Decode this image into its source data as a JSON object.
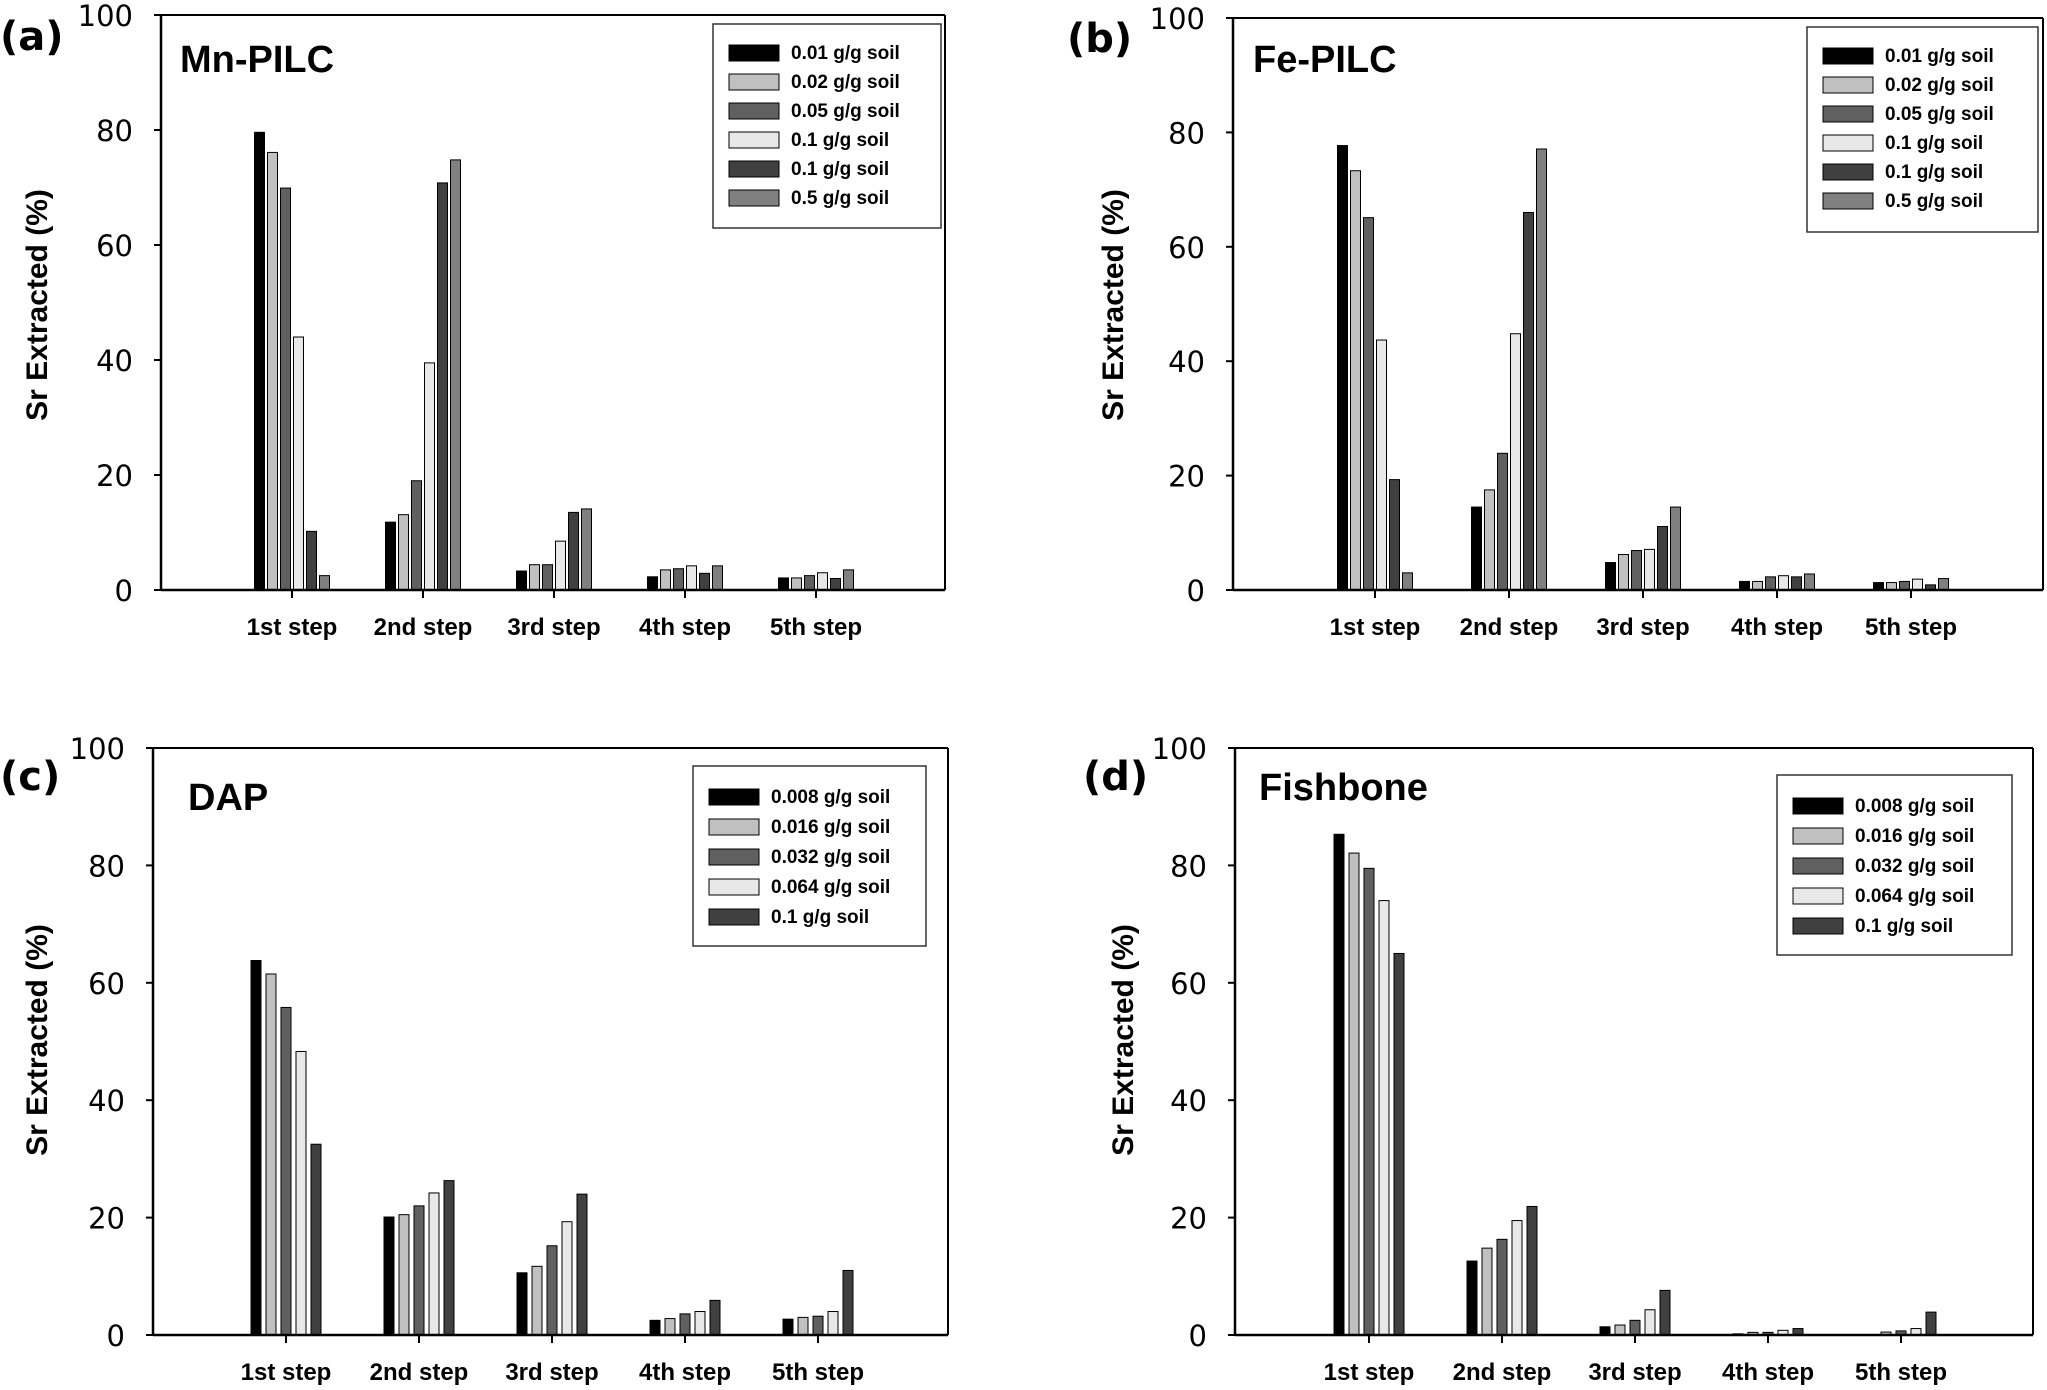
{
  "chart_data": [
    {
      "type": "bar",
      "panel_label": "(a)",
      "title": "Mn-PILC",
      "xlabel": "",
      "ylabel": "Sr Extracted (%)",
      "ylim": [
        0,
        100
      ],
      "yticks": [
        "0",
        "20",
        "40",
        "60",
        "80",
        "100"
      ],
      "categories": [
        "1st step",
        "2nd step",
        "3rd step",
        "4th step",
        "5th step"
      ],
      "legend_position": "top-right",
      "series": [
        {
          "name": "0.01 g/g soil",
          "color": "#000000",
          "values": [
            79.6,
            11.8,
            3.3,
            2.3,
            2.1
          ]
        },
        {
          "name": "0.02 g/g soil",
          "color": "#c0c0c0",
          "values": [
            76.1,
            13.1,
            4.4,
            3.5,
            2.1
          ]
        },
        {
          "name": "0.05 g/g soil",
          "color": "#606060",
          "values": [
            69.9,
            19.0,
            4.4,
            3.7,
            2.5
          ]
        },
        {
          "name": "0.1 g/g soil",
          "color": "#e8e8e8",
          "values": [
            44.0,
            39.5,
            8.5,
            4.2,
            3.0
          ]
        },
        {
          "name": "0.1 g/g soil",
          "color": "#404040",
          "values": [
            10.2,
            70.8,
            13.5,
            2.9,
            2.0
          ]
        },
        {
          "name": "0.5 g/g soil",
          "color": "#808080",
          "values": [
            2.5,
            74.8,
            14.1,
            4.2,
            3.5
          ]
        }
      ]
    },
    {
      "type": "bar",
      "panel_label": "(b)",
      "title": "Fe-PILC",
      "xlabel": "",
      "ylabel": "Sr Extracted (%)",
      "ylim": [
        0,
        100
      ],
      "yticks": [
        "0",
        "20",
        "40",
        "60",
        "80",
        "100"
      ],
      "categories": [
        "1st step",
        "2nd step",
        "3rd step",
        "4th step",
        "5th step"
      ],
      "legend_position": "top-right",
      "series": [
        {
          "name": "0.01 g/g soil",
          "color": "#000000",
          "values": [
            77.7,
            14.5,
            4.8,
            1.5,
            1.3
          ]
        },
        {
          "name": "0.02 g/g soil",
          "color": "#c0c0c0",
          "values": [
            73.3,
            17.5,
            6.2,
            1.5,
            1.3
          ]
        },
        {
          "name": "0.05 g/g soil",
          "color": "#606060",
          "values": [
            65.1,
            23.9,
            6.9,
            2.3,
            1.5
          ]
        },
        {
          "name": "0.1 g/g soil",
          "color": "#e8e8e8",
          "values": [
            43.7,
            44.8,
            7.1,
            2.5,
            1.9
          ]
        },
        {
          "name": "0.1 g/g soil",
          "color": "#404040",
          "values": [
            19.3,
            66.0,
            11.1,
            2.3,
            0.9
          ]
        },
        {
          "name": "0.5 g/g soil",
          "color": "#808080",
          "values": [
            3.0,
            77.1,
            14.5,
            2.8,
            2.0
          ]
        }
      ]
    },
    {
      "type": "bar",
      "panel_label": "(c)",
      "title": "DAP",
      "xlabel": "",
      "ylabel": "Sr Extracted (%)",
      "ylim": [
        0,
        100
      ],
      "yticks": [
        "0",
        "20",
        "40",
        "60",
        "80",
        "100"
      ],
      "categories": [
        "1st step",
        "2nd step",
        "3rd step",
        "4th step",
        "5th step"
      ],
      "legend_position": "top-right",
      "series": [
        {
          "name": "0.008 g/g soil",
          "color": "#000000",
          "values": [
            63.8,
            20.1,
            10.6,
            2.5,
            2.7
          ]
        },
        {
          "name": "0.016 g/g soil",
          "color": "#c0c0c0",
          "values": [
            61.5,
            20.5,
            11.7,
            2.8,
            3.0
          ]
        },
        {
          "name": "0.032 g/g soil",
          "color": "#606060",
          "values": [
            55.8,
            22.0,
            15.2,
            3.6,
            3.2
          ]
        },
        {
          "name": "0.064 g/g soil",
          "color": "#e8e8e8",
          "values": [
            48.3,
            24.2,
            19.3,
            4.0,
            4.0
          ]
        },
        {
          "name": "0.1 g/g soil",
          "color": "#404040",
          "values": [
            32.5,
            26.3,
            24.0,
            5.9,
            11.0
          ]
        }
      ]
    },
    {
      "type": "bar",
      "panel_label": "(d)",
      "title": "Fishbone",
      "xlabel": "",
      "ylabel": "Sr Extracted (%)",
      "ylim": [
        0,
        100
      ],
      "yticks": [
        "0",
        "20",
        "40",
        "60",
        "80",
        "100"
      ],
      "categories": [
        "1st step",
        "2nd step",
        "3rd step",
        "4th step",
        "5th step"
      ],
      "legend_position": "top-right",
      "series": [
        {
          "name": "0.008 g/g soil",
          "color": "#000000",
          "values": [
            85.3,
            12.6,
            1.4,
            0.2,
            0.0
          ]
        },
        {
          "name": "0.016 g/g soil",
          "color": "#c0c0c0",
          "values": [
            82.1,
            14.8,
            1.7,
            0.45,
            0.5
          ]
        },
        {
          "name": "0.032 g/g soil",
          "color": "#606060",
          "values": [
            79.5,
            16.3,
            2.5,
            0.45,
            0.7
          ]
        },
        {
          "name": "0.064 g/g soil",
          "color": "#e8e8e8",
          "values": [
            74.0,
            19.5,
            4.3,
            0.8,
            1.1
          ]
        },
        {
          "name": "0.1 g/g soil",
          "color": "#404040",
          "values": [
            65.0,
            21.9,
            7.6,
            1.1,
            3.9
          ]
        }
      ]
    }
  ]
}
